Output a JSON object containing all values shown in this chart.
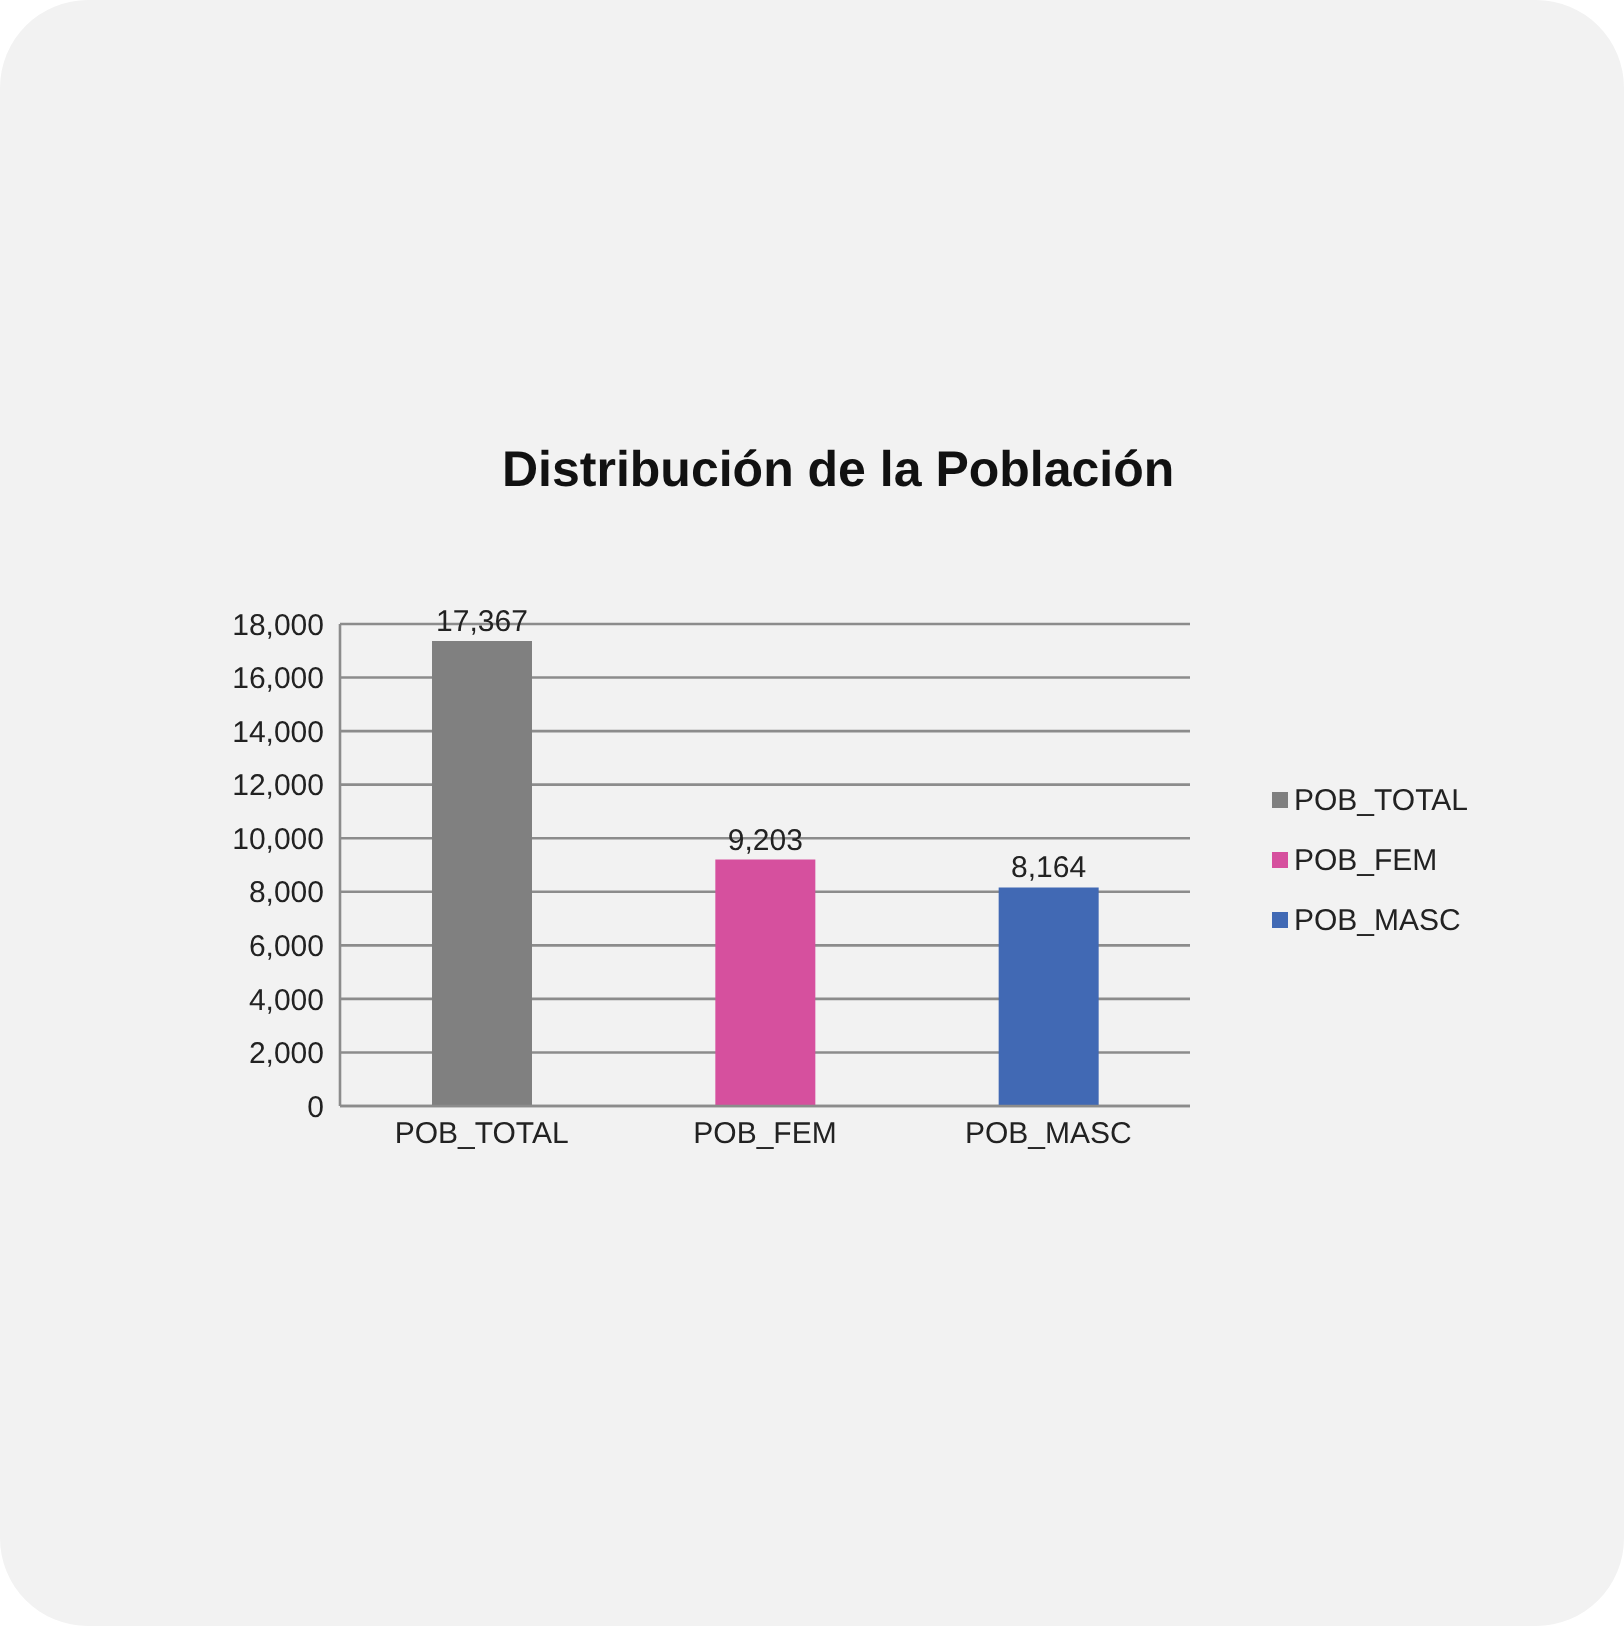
{
  "chart_data": {
    "type": "bar",
    "title": "Distribución de la Población",
    "categories": [
      "POB_TOTAL",
      "POB_FEM",
      "POB_MASC"
    ],
    "series": [
      {
        "name": "POB_TOTAL",
        "color": "#808080",
        "values": [
          17367,
          null,
          null
        ],
        "value_labels": [
          "17,367",
          null,
          null
        ]
      },
      {
        "name": "POB_FEM",
        "color": "#d6509e",
        "values": [
          null,
          9203,
          null
        ],
        "value_labels": [
          null,
          "9,203",
          null
        ]
      },
      {
        "name": "POB_MASC",
        "color": "#4169b4",
        "values": [
          null,
          null,
          8164
        ],
        "value_labels": [
          null,
          null,
          "8,164"
        ]
      }
    ],
    "stacked": true,
    "ylim": [
      0,
      18000
    ],
    "yticks": [
      0,
      {
        "value": 2000,
        "label": "2,000"
      },
      {
        "value": 4000,
        "label": "4,000"
      },
      {
        "value": 6000,
        "label": "6,000"
      },
      {
        "value": 8000,
        "label": "8,000"
      },
      {
        "value": 10000,
        "label": "10,000"
      },
      {
        "value": 12000,
        "label": "12,000"
      },
      {
        "value": 14000,
        "label": "14,000"
      },
      {
        "value": 16000,
        "label": "16,000"
      },
      {
        "value": 18000,
        "label": "18,000"
      }
    ],
    "grid": "y",
    "legend": "right"
  }
}
